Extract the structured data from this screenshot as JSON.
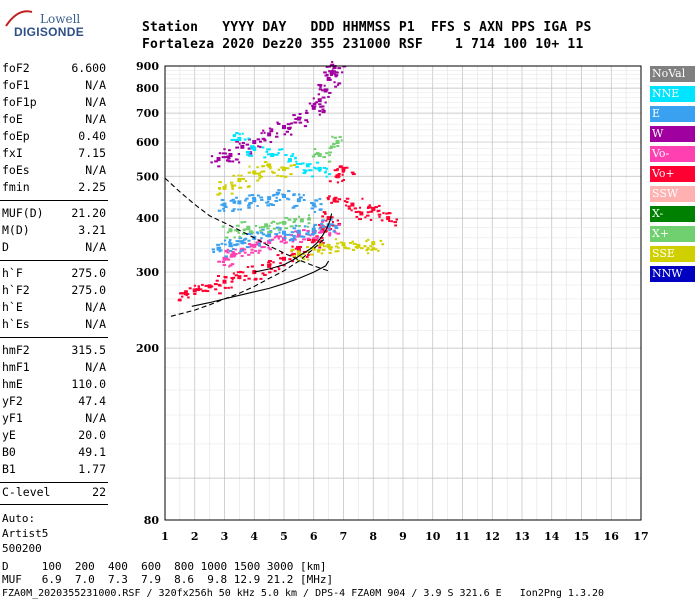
{
  "logo": {
    "line1": "Lowell",
    "line2": "DIGISONDE"
  },
  "header": {
    "line1": "Station   YYYY DAY   DDD HHMMSS P1  FFS S AXN PPS IGA PS",
    "line2": "Fortaleza 2020 Dez20 355 231000 RSF    1 714 100 10+ 11"
  },
  "params_group1": [
    {
      "name": "foF2",
      "value": "6.600"
    },
    {
      "name": "foF1",
      "value": "N/A"
    },
    {
      "name": "foF1p",
      "value": "N/A"
    },
    {
      "name": "foE",
      "value": "N/A"
    },
    {
      "name": "foEp",
      "value": "0.40"
    },
    {
      "name": "fxI",
      "value": "7.15"
    },
    {
      "name": "foEs",
      "value": "N/A"
    },
    {
      "name": "fmin",
      "value": "2.25"
    }
  ],
  "params_group2": [
    {
      "name": "MUF(D)",
      "value": "21.20"
    },
    {
      "name": "M(D)",
      "value": "3.21"
    },
    {
      "name": "D",
      "value": "N/A"
    }
  ],
  "params_group3": [
    {
      "name": "h`F",
      "value": "275.0"
    },
    {
      "name": "h`F2",
      "value": "275.0"
    },
    {
      "name": "h`E",
      "value": "N/A"
    },
    {
      "name": "h`Es",
      "value": "N/A"
    }
  ],
  "params_group4": [
    {
      "name": "hmF2",
      "value": "315.5"
    },
    {
      "name": "hmF1",
      "value": "N/A"
    },
    {
      "name": "hmE",
      "value": "110.0"
    },
    {
      "name": "yF2",
      "value": "47.4"
    },
    {
      "name": "yF1",
      "value": "N/A"
    },
    {
      "name": "yE",
      "value": "20.0"
    },
    {
      "name": "B0",
      "value": "49.1"
    },
    {
      "name": "B1",
      "value": "1.77"
    }
  ],
  "clevel": {
    "name": "C-level",
    "value": "22"
  },
  "auto": {
    "line1": "Auto:",
    "line2": "Artist5",
    "line3": "500200"
  },
  "bottom": {
    "d_row": "D     100  200  400  600  800 1000 1500 3000 [km]",
    "muf_row": "MUF   6.9  7.0  7.3  7.9  8.6  9.8 12.9 21.2 [MHz]",
    "footer": "FZA0M_2020355231000.RSF / 320fx256h 50 kHz 5.0 km / DPS-4 FZA0M 904 / 3.9 S 321.6 E   Ion2Png 1.3.20"
  },
  "legend": [
    {
      "label": "NoVal",
      "color": "#808080"
    },
    {
      "label": "NNE",
      "color": "#00e5ff"
    },
    {
      "label": "E",
      "color": "#3aa0f0"
    },
    {
      "label": "W",
      "color": "#a000a0"
    },
    {
      "label": "Vo-",
      "color": "#ff40b0"
    },
    {
      "label": "Vo+",
      "color": "#ff0030"
    },
    {
      "label": "SSW",
      "color": "#ffb0b0"
    },
    {
      "label": "X-",
      "color": "#008000"
    },
    {
      "label": "X+",
      "color": "#70d070"
    },
    {
      "label": "SSE",
      "color": "#d0d000"
    },
    {
      "label": "NNW",
      "color": "#0000c0"
    }
  ],
  "chart_data": {
    "type": "scatter",
    "xlim": [
      1,
      17
    ],
    "ylim": [
      80,
      900
    ],
    "yscale": "log",
    "grid": true,
    "x_ticks": [
      "1",
      "2",
      "3",
      "4",
      "5",
      "6",
      "7",
      "8",
      "9",
      "10",
      "11",
      "12",
      "13",
      "14",
      "15",
      "16",
      "17"
    ],
    "y_ticks": [
      "80",
      "200",
      "300",
      "400",
      "500",
      "600",
      "700",
      "800",
      "900"
    ],
    "y_tick_values": [
      80,
      200,
      300,
      400,
      500,
      600,
      700,
      800,
      900
    ],
    "series": [
      {
        "mode": "Vo+",
        "color": "#ff0030",
        "x": [
          1.7,
          2,
          2.5,
          3,
          3.5,
          4,
          4.5,
          5,
          5.5,
          6,
          6.3,
          6.5,
          6.7,
          6.8,
          7,
          7.3,
          7.6,
          8,
          8.5
        ],
        "y": [
          268,
          272,
          278,
          285,
          292,
          300,
          310,
          322,
          338,
          355,
          375,
          400,
          440,
          500,
          520,
          430,
          410,
          420,
          400
        ]
      },
      {
        "mode": "Vo-",
        "color": "#ff40b0",
        "x": [
          3,
          3.3,
          3.6,
          4,
          4.5,
          5,
          5.5,
          6,
          6.5
        ],
        "y": [
          322,
          330,
          338,
          345,
          352,
          358,
          365,
          372,
          380
        ]
      },
      {
        "mode": "W",
        "color": "#a000a0",
        "x": [
          2.8,
          3.2,
          3.6,
          4,
          4.5,
          5,
          5.5,
          6,
          6.2,
          6.4,
          6.5,
          6.6,
          6.7
        ],
        "y": [
          548,
          560,
          585,
          600,
          625,
          650,
          680,
          720,
          750,
          790,
          840,
          870,
          895
        ]
      },
      {
        "mode": "E",
        "color": "#3aa0f0",
        "x": [
          2.8,
          3.2,
          3.6,
          4,
          4.5,
          5,
          5.5,
          6,
          6.5,
          3,
          3.5,
          4,
          4.5,
          5,
          5.5,
          6
        ],
        "y": [
          340,
          348,
          352,
          360,
          365,
          370,
          372,
          376,
          385,
          430,
          435,
          440,
          445,
          450,
          440,
          430
        ]
      },
      {
        "mode": "NNE",
        "color": "#00e5ff",
        "x": [
          3.5,
          4,
          4.6,
          5.2,
          5.8,
          6.2
        ],
        "y": [
          610,
          580,
          560,
          545,
          530,
          520
        ]
      },
      {
        "mode": "SSE",
        "color": "#d0d000",
        "x": [
          3,
          3.5,
          4,
          4.5,
          5,
          5.5,
          6,
          6.5,
          7,
          7.5,
          8
        ],
        "y": [
          470,
          490,
          510,
          530,
          520,
          330,
          340,
          345,
          348,
          345,
          350
        ]
      },
      {
        "mode": "X+",
        "color": "#70d070",
        "x": [
          3.2,
          3.8,
          4.4,
          5,
          5.6,
          6.2,
          6.8
        ],
        "y": [
          375,
          380,
          385,
          390,
          395,
          560,
          600
        ]
      }
    ],
    "lines": [
      {
        "name": "dashed-o",
        "style": "dashed",
        "x": [
          1,
          1.5,
          2,
          2.5,
          3,
          3.5,
          4,
          4.5,
          5,
          5.5,
          6,
          6.3,
          6.5
        ],
        "y": [
          495,
          460,
          430,
          405,
          390,
          375,
          360,
          345,
          332,
          320,
          310,
          305,
          302
        ]
      },
      {
        "name": "dashed-x",
        "style": "dashed",
        "x": [
          1.2,
          2,
          2.5,
          3,
          3.5,
          4,
          4.5,
          5,
          5.5,
          6,
          6.4
        ],
        "y": [
          237,
          245,
          252,
          260,
          268,
          278,
          290,
          302,
          318,
          340,
          360
        ]
      },
      {
        "name": "solid-lower",
        "style": "solid",
        "x": [
          1.9,
          2.5,
          3,
          3.5,
          4,
          4.5,
          5,
          5.5,
          6,
          6.2,
          6.4,
          6.5
        ],
        "y": [
          250,
          255,
          260,
          265,
          270,
          275,
          282,
          290,
          300,
          305,
          310,
          318
        ]
      },
      {
        "name": "solid-profile",
        "style": "solid",
        "x": [
          4,
          4.5,
          5,
          5.3,
          5.6,
          5.9,
          6.1,
          6.3,
          6.45,
          6.55,
          6.6
        ],
        "y": [
          300,
          305,
          312,
          320,
          330,
          340,
          350,
          365,
          380,
          395,
          410
        ]
      }
    ]
  }
}
